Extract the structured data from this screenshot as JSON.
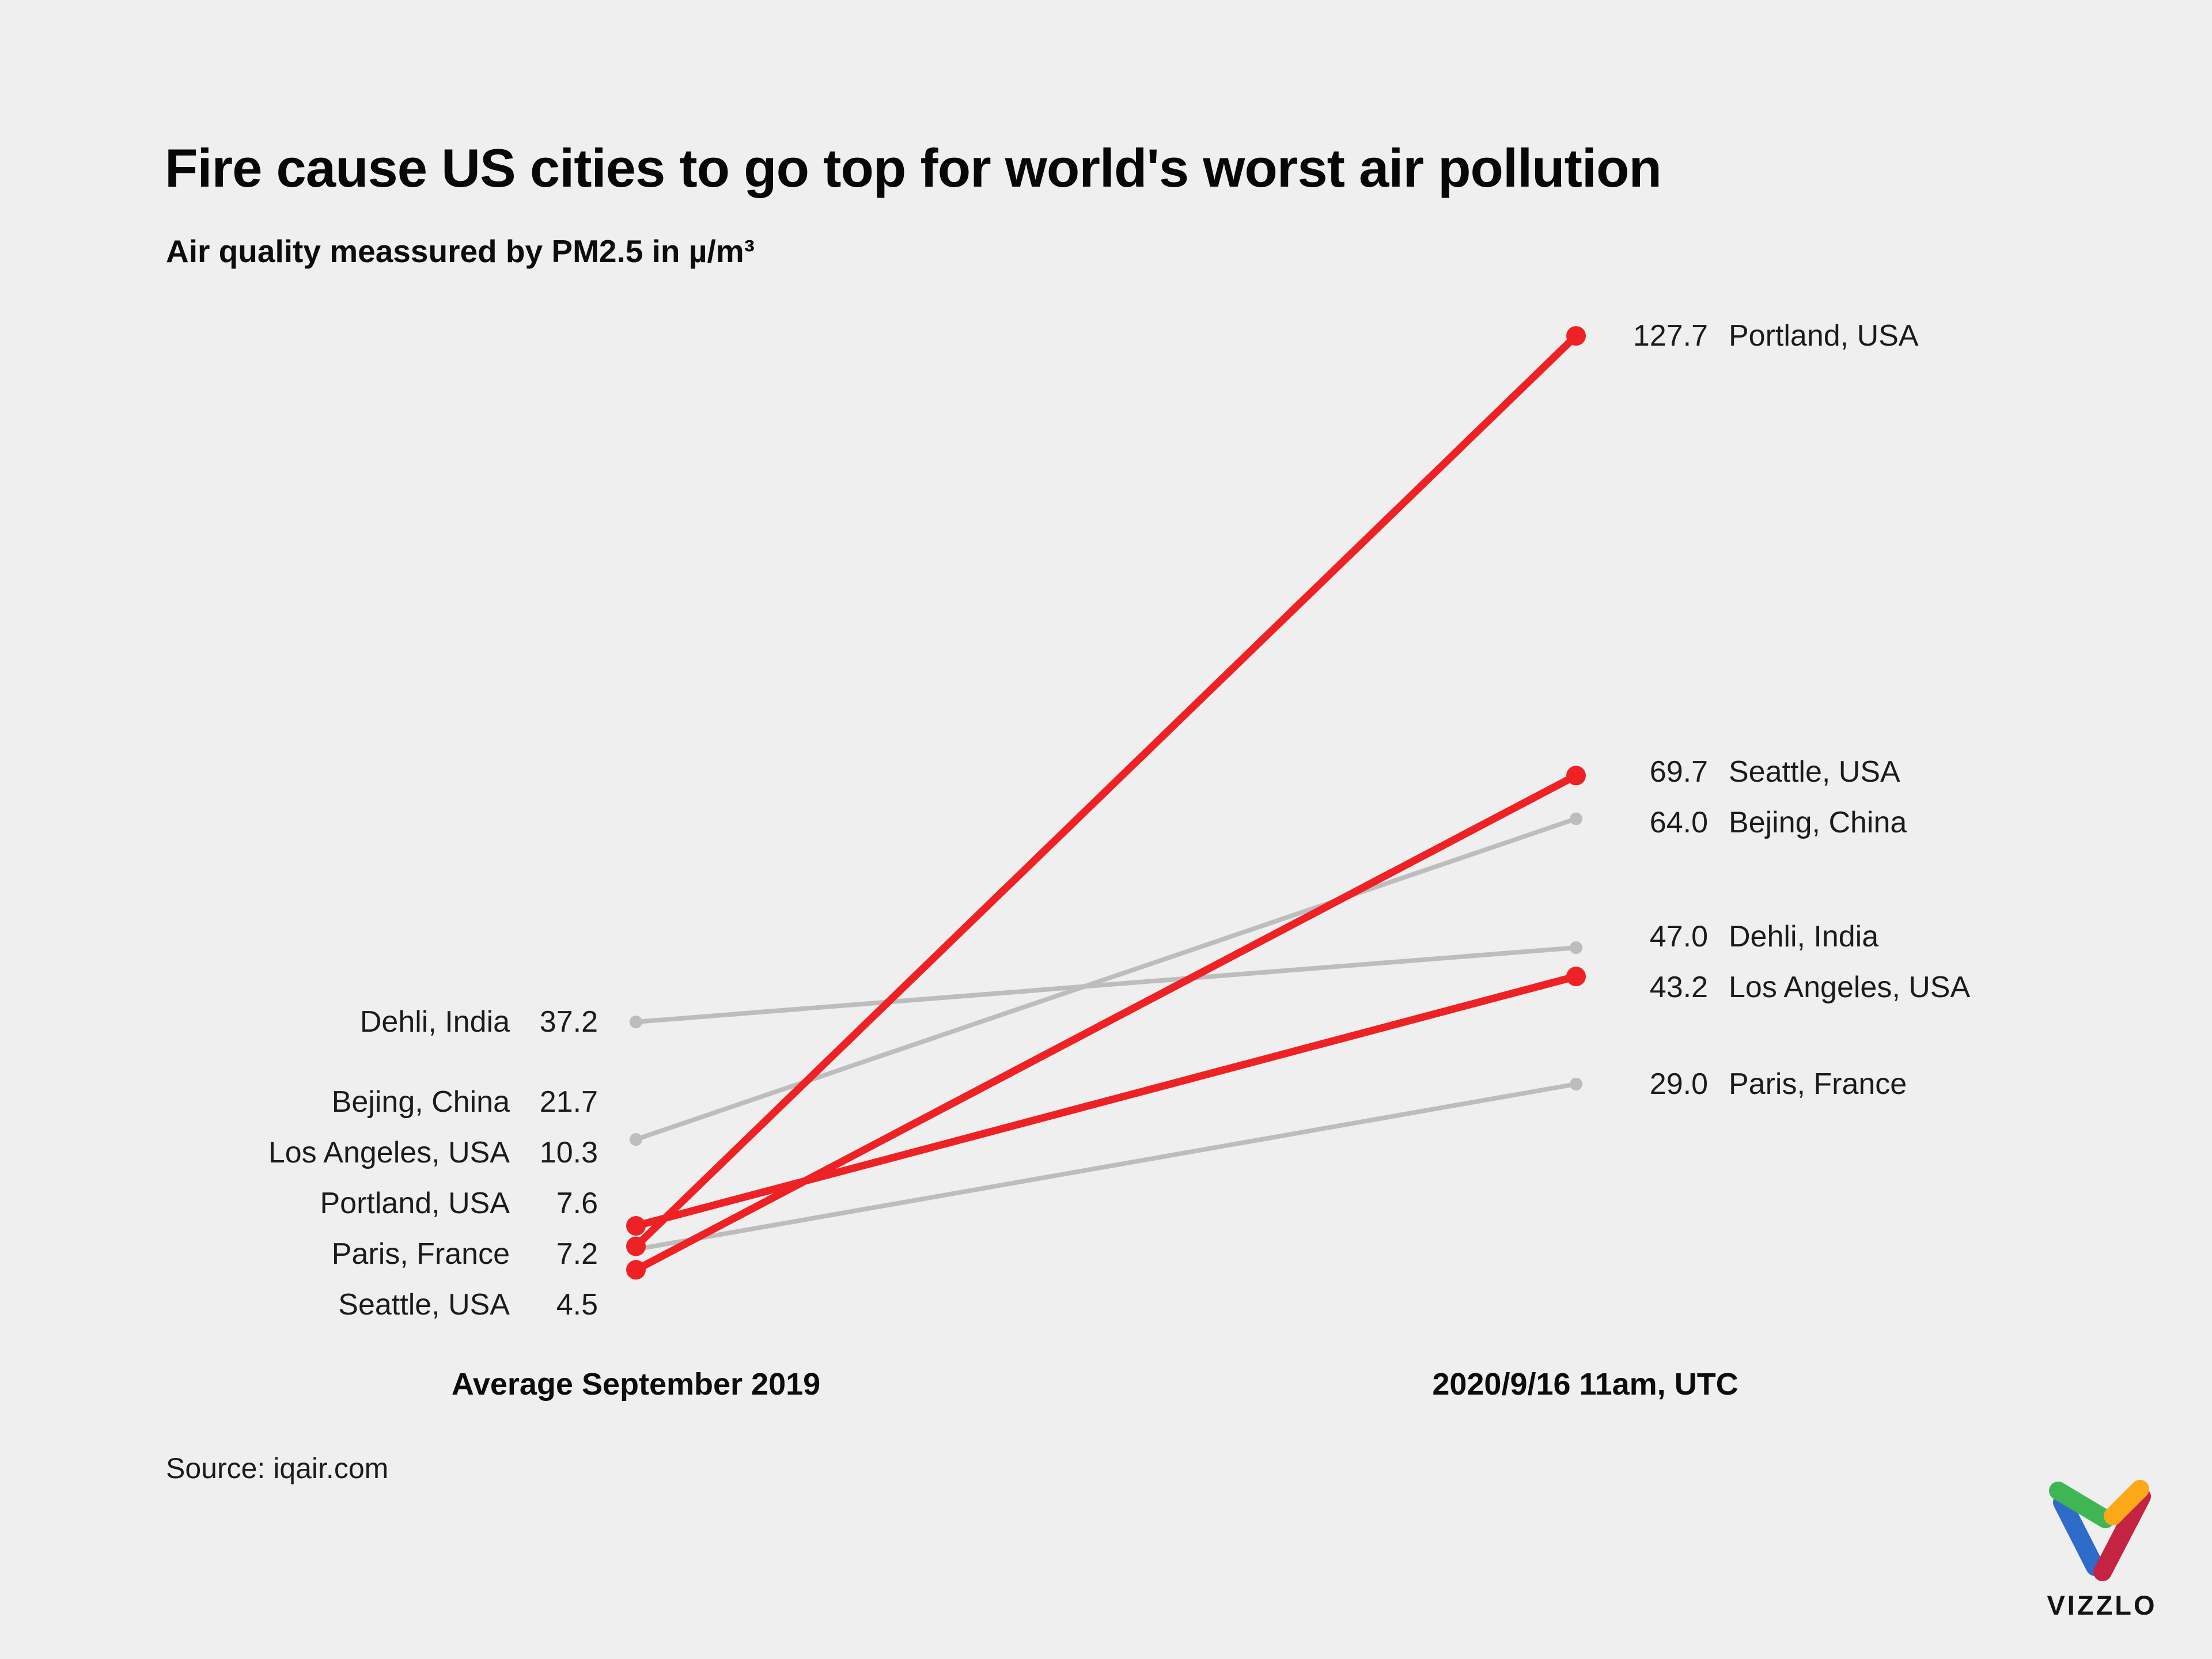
{
  "header": {
    "title": "Fire cause US cities to go top for world's worst air pollution",
    "subtitle": "Air quality meassured by PM2.5 in µ/m³"
  },
  "chart_data": {
    "type": "slope",
    "title": "Fire cause US cities to go top for world's worst air pollution",
    "subtitle": "Air quality meassured by PM2.5 in µ/m³",
    "columns": [
      "Average September 2019",
      "2020/9/16  11am, UTC"
    ],
    "series": [
      {
        "name": "Portland, USA",
        "values": [
          7.6,
          127.7
        ],
        "highlighted": true
      },
      {
        "name": "Seattle, USA",
        "values": [
          4.5,
          69.7
        ],
        "highlighted": true
      },
      {
        "name": "Bejing, China",
        "values": [
          21.7,
          64.0
        ],
        "highlighted": false
      },
      {
        "name": "Dehli, India",
        "values": [
          37.2,
          47.0
        ],
        "highlighted": false
      },
      {
        "name": "Los Angeles, USA",
        "values": [
          10.3,
          43.2
        ],
        "highlighted": true
      },
      {
        "name": "Paris, France",
        "values": [
          7.2,
          29.0
        ],
        "highlighted": false
      }
    ],
    "value_decimals": 1,
    "colors": {
      "highlight": "#ee2125",
      "muted": "#bdbdbd"
    },
    "grid": false,
    "legend_position": "none"
  },
  "axis": {
    "left_label": "Average September 2019",
    "right_label": "2020/9/16  11am, UTC"
  },
  "footer": {
    "source": "Source: iqair.com",
    "logo_text": "VIZZLO"
  },
  "logo_colors": {
    "green": "#3fb653",
    "blue": "#2f6bc8",
    "orange": "#fba919",
    "red": "#c52342"
  }
}
